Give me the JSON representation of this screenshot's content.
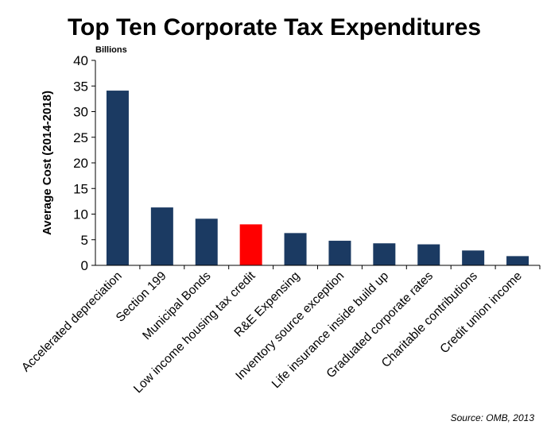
{
  "chart_data": {
    "type": "bar",
    "title": "Top Ten Corporate Tax Expenditures",
    "unit_label": "Billions",
    "ylabel": "Average Cost (2014-2018)",
    "xlabel": "",
    "ylim": [
      0,
      40
    ],
    "yticks": [
      0,
      5,
      10,
      15,
      20,
      25,
      30,
      35,
      40
    ],
    "grid": false,
    "legend": "none",
    "categories": [
      "Accelerated depreciation",
      "Section 199",
      "Municipal Bonds",
      "Low income housing tax credit",
      "R&E Expensing",
      "Inventory source exception",
      "Life insurance inside build up",
      "Graduated corporate rates",
      "Charitable contributions",
      "Credit union income"
    ],
    "values": [
      34.1,
      11.3,
      9.1,
      8.0,
      6.3,
      4.8,
      4.3,
      4.1,
      2.9,
      1.8
    ],
    "highlight_index": 3,
    "colors": {
      "bar": "#1b3a62",
      "highlight": "#ff0000",
      "axis": "#000000"
    },
    "source": "Source: OMB, 2013"
  }
}
